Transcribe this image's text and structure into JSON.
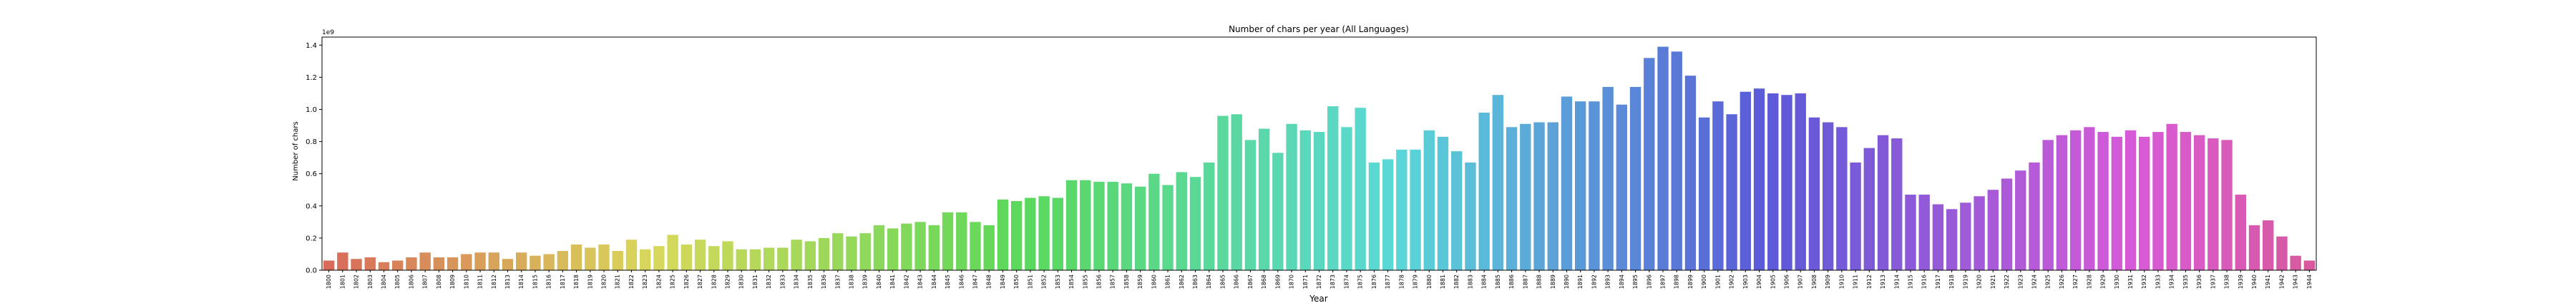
{
  "chart_data": {
    "type": "bar",
    "title": "Number of chars per year (All Languages)",
    "xlabel": "Year",
    "ylabel": "Number of chars",
    "y_scale_label": "1e9",
    "ylim": [
      0,
      1.45
    ],
    "yticks": [
      0.0,
      0.2,
      0.4,
      0.6,
      0.8,
      1.0,
      1.2,
      1.4
    ],
    "ytick_labels": [
      "0.0",
      "0.2",
      "0.4",
      "0.6",
      "0.8",
      "1.0",
      "1.2",
      "1.4"
    ],
    "grid": false,
    "categories": [
      "1800",
      "1801",
      "1802",
      "1803",
      "1804",
      "1805",
      "1806",
      "1807",
      "1808",
      "1809",
      "1810",
      "1811",
      "1812",
      "1813",
      "1814",
      "1815",
      "1816",
      "1817",
      "1818",
      "1819",
      "1820",
      "1821",
      "1822",
      "1823",
      "1824",
      "1825",
      "1826",
      "1827",
      "1828",
      "1829",
      "1830",
      "1831",
      "1832",
      "1833",
      "1834",
      "1835",
      "1836",
      "1837",
      "1838",
      "1839",
      "1840",
      "1841",
      "1842",
      "1843",
      "1844",
      "1845",
      "1846",
      "1847",
      "1848",
      "1849",
      "1850",
      "1851",
      "1852",
      "1853",
      "1854",
      "1855",
      "1856",
      "1857",
      "1858",
      "1859",
      "1860",
      "1861",
      "1862",
      "1863",
      "1864",
      "1865",
      "1866",
      "1867",
      "1868",
      "1869",
      "1870",
      "1871",
      "1872",
      "1873",
      "1874",
      "1875",
      "1876",
      "1877",
      "1878",
      "1879",
      "1880",
      "1881",
      "1882",
      "1883",
      "1884",
      "1885",
      "1886",
      "1887",
      "1888",
      "1889",
      "1890",
      "1891",
      "1892",
      "1893",
      "1894",
      "1895",
      "1896",
      "1897",
      "1898",
      "1899",
      "1900",
      "1901",
      "1902",
      "1903",
      "1904",
      "1905",
      "1906",
      "1907",
      "1908",
      "1909",
      "1910",
      "1911",
      "1912",
      "1913",
      "1914",
      "1915",
      "1916",
      "1917",
      "1918",
      "1919",
      "1920",
      "1921",
      "1922",
      "1923",
      "1924",
      "1925",
      "1926",
      "1927",
      "1928",
      "1929",
      "1930",
      "1931",
      "1932",
      "1933",
      "1934",
      "1935",
      "1936",
      "1937",
      "1938",
      "1939",
      "1940",
      "1941",
      "1942",
      "1943",
      "1944"
    ],
    "values": [
      0.06,
      0.11,
      0.07,
      0.08,
      0.05,
      0.06,
      0.08,
      0.11,
      0.08,
      0.08,
      0.1,
      0.11,
      0.11,
      0.07,
      0.11,
      0.09,
      0.1,
      0.12,
      0.16,
      0.14,
      0.16,
      0.12,
      0.19,
      0.13,
      0.15,
      0.22,
      0.16,
      0.19,
      0.15,
      0.18,
      0.13,
      0.13,
      0.14,
      0.14,
      0.19,
      0.18,
      0.2,
      0.23,
      0.21,
      0.23,
      0.28,
      0.26,
      0.29,
      0.3,
      0.28,
      0.36,
      0.36,
      0.3,
      0.28,
      0.44,
      0.43,
      0.45,
      0.46,
      0.45,
      0.56,
      0.56,
      0.55,
      0.55,
      0.54,
      0.52,
      0.6,
      0.53,
      0.61,
      0.58,
      0.67,
      0.96,
      0.97,
      0.81,
      0.88,
      0.73,
      0.91,
      0.87,
      0.86,
      1.02,
      0.89,
      1.01,
      0.67,
      0.69,
      0.75,
      0.75,
      0.87,
      0.83,
      0.74,
      0.67,
      0.98,
      1.09,
      0.89,
      0.91,
      0.92,
      0.92,
      1.08,
      1.05,
      1.05,
      1.14,
      1.03,
      1.14,
      1.32,
      1.39,
      1.36,
      1.21,
      0.95,
      1.05,
      0.97,
      1.11,
      1.13,
      1.1,
      1.09,
      1.1,
      0.95,
      0.92,
      0.89,
      0.67,
      0.76,
      0.84,
      0.82,
      0.47,
      0.47,
      0.41,
      0.38,
      0.42,
      0.46,
      0.5,
      0.57,
      0.62,
      0.67,
      0.81,
      0.84,
      0.87,
      0.89,
      0.86,
      0.83,
      0.87,
      0.83,
      0.86,
      0.91,
      0.86,
      0.84,
      0.82,
      0.81,
      0.47,
      0.28,
      0.31,
      0.21,
      0.09,
      0.06
    ]
  }
}
